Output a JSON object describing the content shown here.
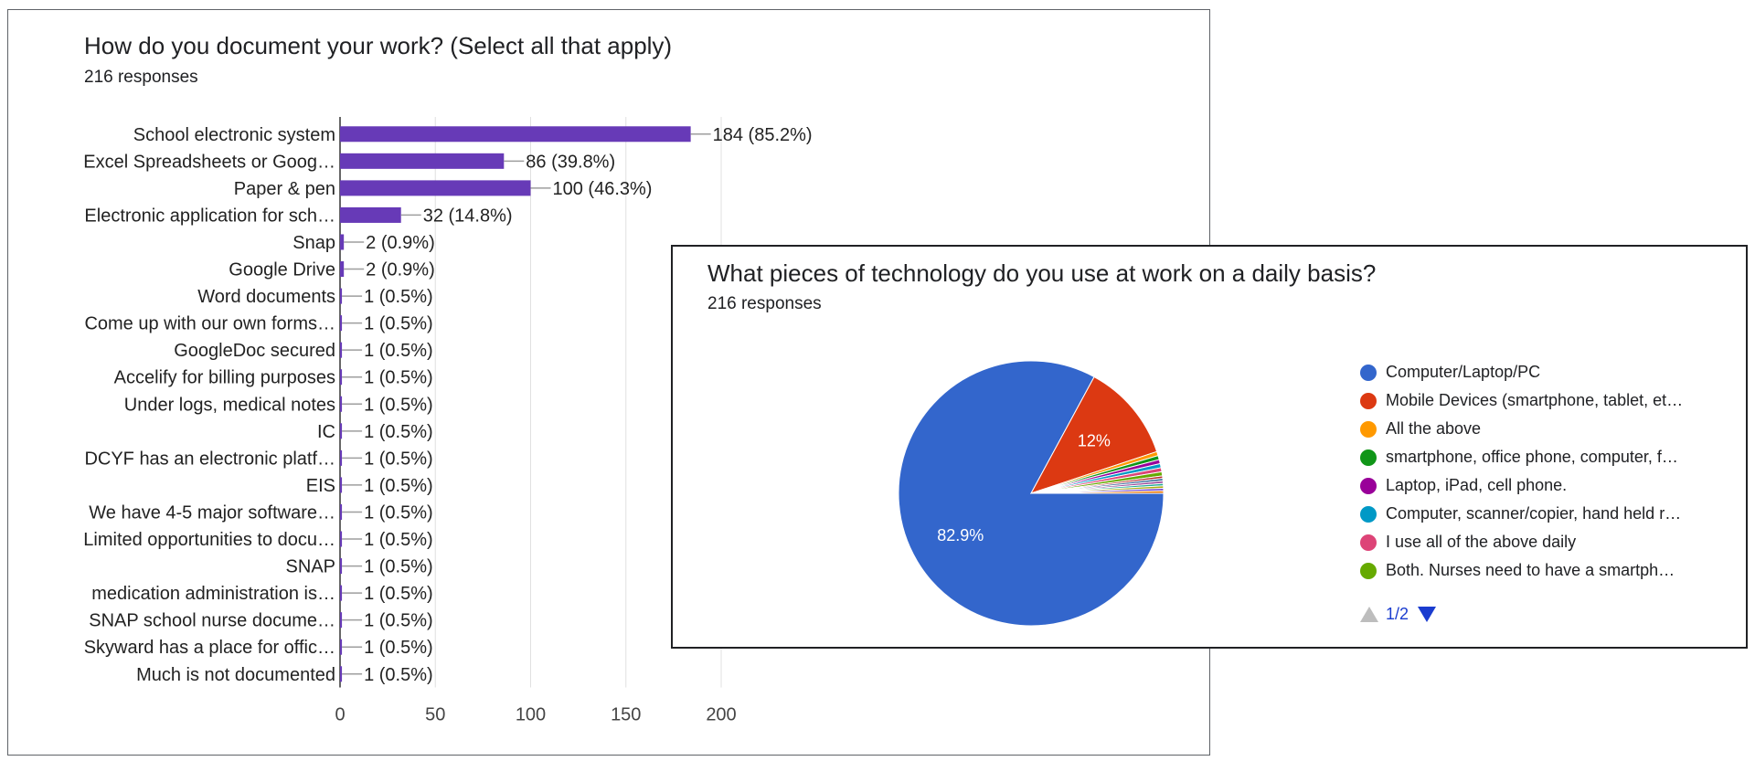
{
  "chart_data": [
    {
      "type": "bar",
      "orientation": "horizontal",
      "title": "How do you document your work? (Select all that apply)",
      "subtitle": "216 responses",
      "categories": [
        "School electronic system",
        "Excel Spreadsheets or Goog…",
        "Paper & pen",
        "Electronic application for sch…",
        "Snap",
        "Google Drive",
        "Word documents",
        "Come up with our own forms…",
        "GoogleDoc secured",
        "Accelify for billing purposes",
        "Under logs, medical notes",
        "IC",
        "DCYF has an electronic platf…",
        "EIS",
        "We have 4-5 major software…",
        "Limited opportunities to docu…",
        "SNAP",
        "medication administration is…",
        "SNAP school nurse docume…",
        "Skyward has a place for offic…",
        "Much is not documented"
      ],
      "values": [
        184,
        86,
        100,
        32,
        2,
        2,
        1,
        1,
        1,
        1,
        1,
        1,
        1,
        1,
        1,
        1,
        1,
        1,
        1,
        1,
        1
      ],
      "data_labels": [
        "184 (85.2%)",
        "86 (39.8%)",
        "100 (46.3%)",
        "32 (14.8%)",
        "2 (0.9%)",
        "2 (0.9%)",
        "1 (0.5%)",
        "1 (0.5%)",
        "1 (0.5%)",
        "1 (0.5%)",
        "1 (0.5%)",
        "1 (0.5%)",
        "1 (0.5%)",
        "1 (0.5%)",
        "1 (0.5%)",
        "1 (0.5%)",
        "1 (0.5%)",
        "1 (0.5%)",
        "1 (0.5%)",
        "1 (0.5%)",
        "1 (0.5%)"
      ],
      "xlim": [
        0,
        200
      ],
      "xticks": [
        0,
        50,
        100,
        150,
        200
      ],
      "grid": true,
      "color": "#673ab7"
    },
    {
      "type": "pie",
      "title": "What pieces of technology do you use at work on a daily basis?",
      "subtitle": "216 responses",
      "slices": [
        {
          "label": "Computer/Laptop/PC",
          "percent": 82.9,
          "color": "#3366cc",
          "value_label": "82.9%"
        },
        {
          "label": "Mobile Devices (smartphone, tablet, et…",
          "percent": 12.0,
          "color": "#dc3912",
          "value_label": "12%"
        },
        {
          "label": "All the above",
          "percent": 0.5,
          "color": "#ff9900",
          "value_label": ""
        },
        {
          "label": "smartphone, office phone, computer, f…",
          "percent": 0.5,
          "color": "#109618",
          "value_label": ""
        },
        {
          "label": "Laptop, iPad, cell phone.",
          "percent": 0.5,
          "color": "#990099",
          "value_label": ""
        },
        {
          "label": "Computer, scanner/copier, hand held r…",
          "percent": 0.5,
          "color": "#0099c6",
          "value_label": ""
        },
        {
          "label": "I use all of the above daily",
          "percent": 0.5,
          "color": "#dd4477",
          "value_label": ""
        },
        {
          "label": "Both. Nurses need to have a smartph…",
          "percent": 0.5,
          "color": "#66aa00",
          "value_label": ""
        }
      ],
      "other_slice_colors": [
        "#b82e2e",
        "#316395",
        "#994499",
        "#22aa99",
        "#aaaa11",
        "#6633cc",
        "#e67300"
      ],
      "legend_position": "right",
      "legend_page": "1/2"
    }
  ]
}
